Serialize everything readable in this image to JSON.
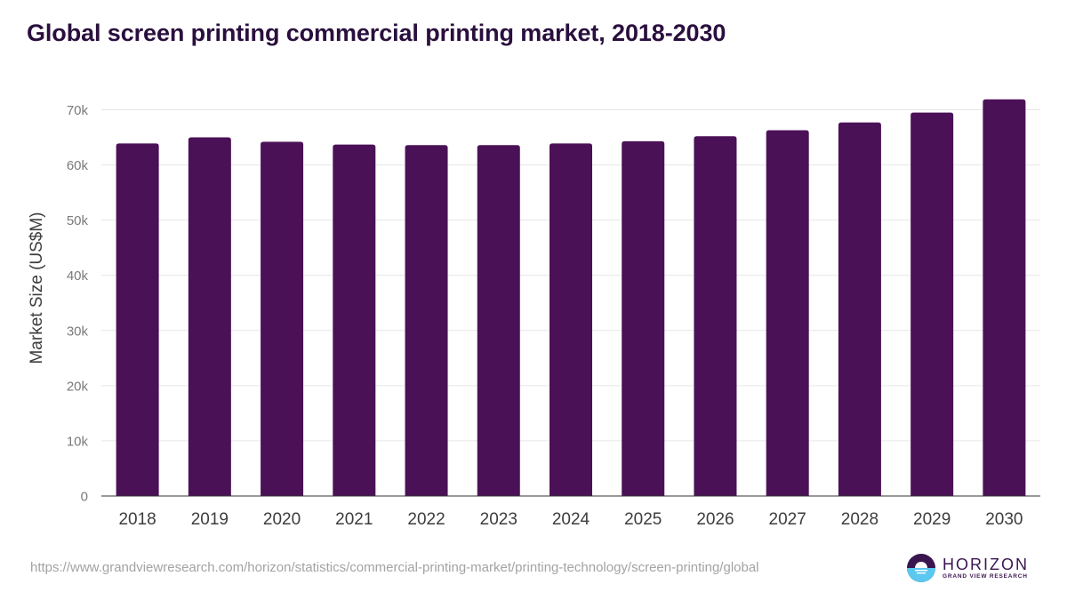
{
  "title": "Global screen printing commercial printing market, 2018-2030",
  "source_url": "https://www.grandviewresearch.com/horizon/statistics/commercial-printing-market/printing-technology/screen-printing/global",
  "logo": {
    "name": "HORIZON",
    "subtitle": "GRAND VIEW RESEARCH",
    "icon": "horizon-sun-icon"
  },
  "colors": {
    "bar": "#4b1157",
    "title": "#2a0f3e",
    "grid": "#e6e6e6",
    "axis": "#333333",
    "logo_dark": "#3a1650",
    "logo_light": "#5bc8f0"
  },
  "chart_data": {
    "type": "bar",
    "title": "Global screen printing commercial printing market, 2018-2030",
    "xlabel": "",
    "ylabel": "Market Size (US$M)",
    "categories": [
      "2018",
      "2019",
      "2020",
      "2021",
      "2022",
      "2023",
      "2024",
      "2025",
      "2026",
      "2027",
      "2028",
      "2029",
      "2030"
    ],
    "values": [
      63900,
      65000,
      64200,
      63700,
      63600,
      63600,
      63900,
      64300,
      65200,
      66300,
      67700,
      69500,
      71900
    ],
    "ylim": [
      0,
      70000
    ],
    "yticks": [
      0,
      10000,
      20000,
      30000,
      40000,
      50000,
      60000,
      70000
    ],
    "ytick_labels": [
      "0",
      "10k",
      "20k",
      "30k",
      "40k",
      "50k",
      "60k",
      "70k"
    ],
    "grid": true,
    "legend": "none"
  }
}
